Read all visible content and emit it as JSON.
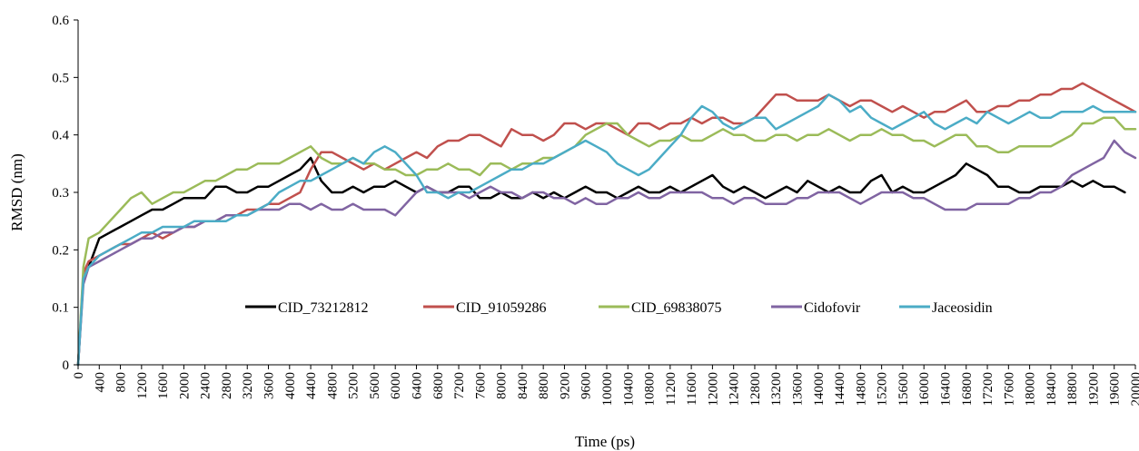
{
  "chart_data": {
    "type": "line",
    "title": "",
    "xlabel": "Time (ps)",
    "ylabel": "RMSD (nm)",
    "xlim": [
      0,
      20000
    ],
    "ylim": [
      0,
      0.6
    ],
    "x_ticks": [
      0,
      400,
      800,
      1200,
      1600,
      2000,
      2400,
      2800,
      3200,
      3600,
      4000,
      4400,
      4800,
      5200,
      5600,
      6000,
      6400,
      6800,
      7200,
      7600,
      8000,
      8400,
      8800,
      9200,
      9600,
      10000,
      10400,
      10800,
      11200,
      11600,
      12000,
      12400,
      12800,
      13200,
      13600,
      14000,
      14400,
      14800,
      15200,
      15600,
      16000,
      16400,
      16800,
      17200,
      17600,
      18000,
      18400,
      18800,
      19200,
      19600,
      20000
    ],
    "y_ticks": [
      "0",
      "0.1",
      "0.2",
      "0.3",
      "0.4",
      "0.5",
      "0.6"
    ],
    "grid": false,
    "legend_position": "inside-bottom-center",
    "series": [
      {
        "name": "CID_73212812",
        "color": "#000000",
        "x": [
          0,
          100,
          200,
          400,
          600,
          800,
          1000,
          1200,
          1400,
          1600,
          1800,
          2000,
          2200,
          2400,
          2600,
          2800,
          3000,
          3200,
          3400,
          3600,
          3800,
          4000,
          4200,
          4400,
          4600,
          4800,
          5000,
          5200,
          5400,
          5600,
          5800,
          6000,
          6200,
          6400,
          6600,
          6800,
          7000,
          7200,
          7400,
          7600,
          7800,
          8000,
          8200,
          8400,
          8600,
          8800,
          9000,
          9200,
          9400,
          9600,
          9800,
          10000,
          10200,
          10400,
          10600,
          10800,
          11000,
          11200,
          11400,
          11600,
          11800,
          12000,
          12200,
          12400,
          12600,
          12800,
          13000,
          13200,
          13400,
          13600,
          13800,
          14000,
          14200,
          14400,
          14600,
          14800,
          15000,
          15200,
          15400,
          15600,
          15800,
          16000,
          16200,
          16400,
          16600,
          16800,
          17000,
          17200,
          17400,
          17600,
          17800,
          18000,
          18200,
          18400,
          18600,
          18800,
          19000,
          19200,
          19400,
          19600,
          19800
        ],
        "values": [
          0.0,
          0.15,
          0.17,
          0.22,
          0.23,
          0.24,
          0.25,
          0.26,
          0.27,
          0.27,
          0.28,
          0.29,
          0.29,
          0.29,
          0.31,
          0.31,
          0.3,
          0.3,
          0.31,
          0.31,
          0.32,
          0.33,
          0.34,
          0.36,
          0.32,
          0.3,
          0.3,
          0.31,
          0.3,
          0.31,
          0.31,
          0.32,
          0.31,
          0.3,
          0.31,
          0.3,
          0.3,
          0.31,
          0.31,
          0.29,
          0.29,
          0.3,
          0.29,
          0.29,
          0.3,
          0.29,
          0.3,
          0.29,
          0.3,
          0.31,
          0.3,
          0.3,
          0.29,
          0.3,
          0.31,
          0.3,
          0.3,
          0.31,
          0.3,
          0.31,
          0.32,
          0.33,
          0.31,
          0.3,
          0.31,
          0.3,
          0.29,
          0.3,
          0.31,
          0.3,
          0.32,
          0.31,
          0.3,
          0.31,
          0.3,
          0.3,
          0.32,
          0.33,
          0.3,
          0.31,
          0.3,
          0.3,
          0.31,
          0.32,
          0.33,
          0.35,
          0.34,
          0.33,
          0.31,
          0.31,
          0.3,
          0.3,
          0.31,
          0.31,
          0.31,
          0.32,
          0.31,
          0.32,
          0.31,
          0.31,
          0.3
        ]
      },
      {
        "name": "CID_91059286",
        "color": "#c0504d",
        "x": [
          0,
          100,
          200,
          400,
          600,
          800,
          1000,
          1200,
          1400,
          1600,
          1800,
          2000,
          2200,
          2400,
          2600,
          2800,
          3000,
          3200,
          3400,
          3600,
          3800,
          4000,
          4200,
          4400,
          4600,
          4800,
          5000,
          5200,
          5400,
          5600,
          5800,
          6000,
          6200,
          6400,
          6600,
          6800,
          7000,
          7200,
          7400,
          7600,
          7800,
          8000,
          8200,
          8400,
          8600,
          8800,
          9000,
          9200,
          9400,
          9600,
          9800,
          10000,
          10200,
          10400,
          10600,
          10800,
          11000,
          11200,
          11400,
          11600,
          11800,
          12000,
          12200,
          12400,
          12600,
          12800,
          13000,
          13200,
          13400,
          13600,
          13800,
          14000,
          14200,
          14400,
          14600,
          14800,
          15000,
          15200,
          15400,
          15600,
          15800,
          16000,
          16200,
          16400,
          16600,
          16800,
          17000,
          17200,
          17400,
          17600,
          17800,
          18000,
          18200,
          18400,
          18600,
          18800,
          19000,
          19200,
          19400,
          19600,
          19800,
          20000
        ],
        "values": [
          0.0,
          0.16,
          0.18,
          0.19,
          0.2,
          0.21,
          0.21,
          0.22,
          0.23,
          0.22,
          0.23,
          0.24,
          0.24,
          0.25,
          0.25,
          0.26,
          0.26,
          0.27,
          0.27,
          0.28,
          0.28,
          0.29,
          0.3,
          0.34,
          0.37,
          0.37,
          0.36,
          0.35,
          0.34,
          0.35,
          0.34,
          0.35,
          0.36,
          0.37,
          0.36,
          0.38,
          0.39,
          0.39,
          0.4,
          0.4,
          0.39,
          0.38,
          0.41,
          0.4,
          0.4,
          0.39,
          0.4,
          0.42,
          0.42,
          0.41,
          0.42,
          0.42,
          0.41,
          0.4,
          0.42,
          0.42,
          0.41,
          0.42,
          0.42,
          0.43,
          0.42,
          0.43,
          0.43,
          0.42,
          0.42,
          0.43,
          0.45,
          0.47,
          0.47,
          0.46,
          0.46,
          0.46,
          0.47,
          0.46,
          0.45,
          0.46,
          0.46,
          0.45,
          0.44,
          0.45,
          0.44,
          0.43,
          0.44,
          0.44,
          0.45,
          0.46,
          0.44,
          0.44,
          0.45,
          0.45,
          0.46,
          0.46,
          0.47,
          0.47,
          0.48,
          0.48,
          0.49,
          0.48,
          0.47,
          0.46,
          0.45,
          0.44
        ]
      },
      {
        "name": "CID_69838075",
        "color": "#9bbb59",
        "x": [
          0,
          100,
          200,
          400,
          600,
          800,
          1000,
          1200,
          1400,
          1600,
          1800,
          2000,
          2200,
          2400,
          2600,
          2800,
          3000,
          3200,
          3400,
          3600,
          3800,
          4000,
          4200,
          4400,
          4600,
          4800,
          5000,
          5200,
          5400,
          5600,
          5800,
          6000,
          6200,
          6400,
          6600,
          6800,
          7000,
          7200,
          7400,
          7600,
          7800,
          8000,
          8200,
          8400,
          8600,
          8800,
          9000,
          9200,
          9400,
          9600,
          9800,
          10000,
          10200,
          10400,
          10600,
          10800,
          11000,
          11200,
          11400,
          11600,
          11800,
          12000,
          12200,
          12400,
          12600,
          12800,
          13000,
          13200,
          13400,
          13600,
          13800,
          14000,
          14200,
          14400,
          14600,
          14800,
          15000,
          15200,
          15400,
          15600,
          15800,
          16000,
          16200,
          16400,
          16600,
          16800,
          17000,
          17200,
          17400,
          17600,
          17800,
          18000,
          18200,
          18400,
          18600,
          18800,
          19000,
          19200,
          19400,
          19600,
          19800,
          20000
        ],
        "values": [
          0.0,
          0.17,
          0.22,
          0.23,
          0.25,
          0.27,
          0.29,
          0.3,
          0.28,
          0.29,
          0.3,
          0.3,
          0.31,
          0.32,
          0.32,
          0.33,
          0.34,
          0.34,
          0.35,
          0.35,
          0.35,
          0.36,
          0.37,
          0.38,
          0.36,
          0.35,
          0.35,
          0.36,
          0.35,
          0.35,
          0.34,
          0.34,
          0.33,
          0.33,
          0.34,
          0.34,
          0.35,
          0.34,
          0.34,
          0.33,
          0.35,
          0.35,
          0.34,
          0.35,
          0.35,
          0.36,
          0.36,
          0.37,
          0.38,
          0.4,
          0.41,
          0.42,
          0.42,
          0.4,
          0.39,
          0.38,
          0.39,
          0.39,
          0.4,
          0.39,
          0.39,
          0.4,
          0.41,
          0.4,
          0.4,
          0.39,
          0.39,
          0.4,
          0.4,
          0.39,
          0.4,
          0.4,
          0.41,
          0.4,
          0.39,
          0.4,
          0.4,
          0.41,
          0.4,
          0.4,
          0.39,
          0.39,
          0.38,
          0.39,
          0.4,
          0.4,
          0.38,
          0.38,
          0.37,
          0.37,
          0.38,
          0.38,
          0.38,
          0.38,
          0.39,
          0.4,
          0.42,
          0.42,
          0.43,
          0.43,
          0.41,
          0.41
        ]
      },
      {
        "name": "Cidofovir",
        "color": "#8064a2",
        "x": [
          0,
          100,
          200,
          400,
          600,
          800,
          1000,
          1200,
          1400,
          1600,
          1800,
          2000,
          2200,
          2400,
          2600,
          2800,
          3000,
          3200,
          3400,
          3600,
          3800,
          4000,
          4200,
          4400,
          4600,
          4800,
          5000,
          5200,
          5400,
          5600,
          5800,
          6000,
          6200,
          6400,
          6600,
          6800,
          7000,
          7200,
          7400,
          7600,
          7800,
          8000,
          8200,
          8400,
          8600,
          8800,
          9000,
          9200,
          9400,
          9600,
          9800,
          10000,
          10200,
          10400,
          10600,
          10800,
          11000,
          11200,
          11400,
          11600,
          11800,
          12000,
          12200,
          12400,
          12600,
          12800,
          13000,
          13200,
          13400,
          13600,
          13800,
          14000,
          14200,
          14400,
          14600,
          14800,
          15000,
          15200,
          15400,
          15600,
          15800,
          16000,
          16200,
          16400,
          16600,
          16800,
          17000,
          17200,
          17400,
          17600,
          17800,
          18000,
          18200,
          18400,
          18600,
          18800,
          19000,
          19200,
          19400,
          19600,
          19800,
          20000
        ],
        "values": [
          0.0,
          0.14,
          0.17,
          0.18,
          0.19,
          0.2,
          0.21,
          0.22,
          0.22,
          0.23,
          0.23,
          0.24,
          0.24,
          0.25,
          0.25,
          0.26,
          0.26,
          0.26,
          0.27,
          0.27,
          0.27,
          0.28,
          0.28,
          0.27,
          0.28,
          0.27,
          0.27,
          0.28,
          0.27,
          0.27,
          0.27,
          0.26,
          0.28,
          0.3,
          0.31,
          0.3,
          0.3,
          0.3,
          0.29,
          0.3,
          0.31,
          0.3,
          0.3,
          0.29,
          0.3,
          0.3,
          0.29,
          0.29,
          0.28,
          0.29,
          0.28,
          0.28,
          0.29,
          0.29,
          0.3,
          0.29,
          0.29,
          0.3,
          0.3,
          0.3,
          0.3,
          0.29,
          0.29,
          0.28,
          0.29,
          0.29,
          0.28,
          0.28,
          0.28,
          0.29,
          0.29,
          0.3,
          0.3,
          0.3,
          0.29,
          0.28,
          0.29,
          0.3,
          0.3,
          0.3,
          0.29,
          0.29,
          0.28,
          0.27,
          0.27,
          0.27,
          0.28,
          0.28,
          0.28,
          0.28,
          0.29,
          0.29,
          0.3,
          0.3,
          0.31,
          0.33,
          0.34,
          0.35,
          0.36,
          0.39,
          0.37,
          0.36
        ]
      },
      {
        "name": "Jaceosidin",
        "color": "#4bacc6",
        "x": [
          0,
          100,
          200,
          400,
          600,
          800,
          1000,
          1200,
          1400,
          1600,
          1800,
          2000,
          2200,
          2400,
          2600,
          2800,
          3000,
          3200,
          3400,
          3600,
          3800,
          4000,
          4200,
          4400,
          4600,
          4800,
          5000,
          5200,
          5400,
          5600,
          5800,
          6000,
          6200,
          6400,
          6600,
          6800,
          7000,
          7200,
          7400,
          7600,
          7800,
          8000,
          8200,
          8400,
          8600,
          8800,
          9000,
          9200,
          9400,
          9600,
          9800,
          10000,
          10200,
          10400,
          10600,
          10800,
          11000,
          11200,
          11400,
          11600,
          11800,
          12000,
          12200,
          12400,
          12600,
          12800,
          13000,
          13200,
          13400,
          13600,
          13800,
          14000,
          14200,
          14400,
          14600,
          14800,
          15000,
          15200,
          15400,
          15600,
          15800,
          16000,
          16200,
          16400,
          16600,
          16800,
          17000,
          17200,
          17400,
          17600,
          17800,
          18000,
          18200,
          18400,
          18600,
          18800,
          19000,
          19200,
          19400,
          19600,
          19800,
          20000
        ],
        "values": [
          0.0,
          0.15,
          0.17,
          0.19,
          0.2,
          0.21,
          0.22,
          0.23,
          0.23,
          0.24,
          0.24,
          0.24,
          0.25,
          0.25,
          0.25,
          0.25,
          0.26,
          0.26,
          0.27,
          0.28,
          0.3,
          0.31,
          0.32,
          0.32,
          0.33,
          0.34,
          0.35,
          0.36,
          0.35,
          0.37,
          0.38,
          0.37,
          0.35,
          0.33,
          0.3,
          0.3,
          0.29,
          0.3,
          0.3,
          0.31,
          0.32,
          0.33,
          0.34,
          0.34,
          0.35,
          0.35,
          0.36,
          0.37,
          0.38,
          0.39,
          0.38,
          0.37,
          0.35,
          0.34,
          0.33,
          0.34,
          0.36,
          0.38,
          0.4,
          0.43,
          0.45,
          0.44,
          0.42,
          0.41,
          0.42,
          0.43,
          0.43,
          0.41,
          0.42,
          0.43,
          0.44,
          0.45,
          0.47,
          0.46,
          0.44,
          0.45,
          0.43,
          0.42,
          0.41,
          0.42,
          0.43,
          0.44,
          0.42,
          0.41,
          0.42,
          0.43,
          0.42,
          0.44,
          0.43,
          0.42,
          0.43,
          0.44,
          0.43,
          0.43,
          0.44,
          0.44,
          0.44,
          0.45,
          0.44,
          0.44,
          0.44,
          0.44
        ]
      }
    ]
  }
}
